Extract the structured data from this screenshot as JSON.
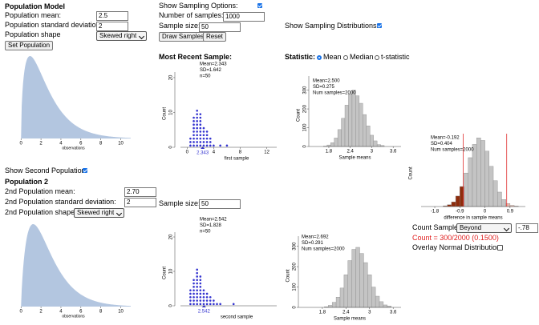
{
  "population1": {
    "title": "Population Model",
    "mean_label": "Population mean:",
    "mean_value": 2.5,
    "sd_label": "Population standard deviation:",
    "sd_value": 2,
    "shape_label": "Population shape",
    "shape_value": "Skewed right",
    "set_button": "Set Population"
  },
  "sampling": {
    "show_options_label": "Show Sampling Options:",
    "number_label": "Number of samples:",
    "number_value": 1000,
    "size_label": "Sample size:",
    "size_value": 50,
    "draw_button": "Draw Samples",
    "reset_button": "Reset",
    "show_dist_label": "Show Sampling Distributions:",
    "recent_title": "Most Recent Sample:",
    "statistic_label": "Statistic:",
    "statistic_options": [
      "Mean",
      "Median",
      "t-statistic"
    ]
  },
  "population2": {
    "show_label": "Show Second Population",
    "title": "Population 2",
    "mean_label": "2nd Population mean:",
    "mean_value": {
      "value": 2.7,
      "label": "2.70"
    },
    "sd_label": "2nd Population standard deviation:",
    "sd_value": 2,
    "shape_label": "2nd Population shape",
    "shape_value": "Skewed right",
    "size_label": "Sample size:",
    "size_value": 50
  },
  "count_samples": {
    "label": "Count Samples",
    "mode": "Beyond",
    "cutoff": {
      "value": -0.78,
      "label": "-.78"
    },
    "result": "Count = 300/2000 (0.1500)",
    "overlay_label": "Overlay Normal Distribution:"
  },
  "chart_data": [
    {
      "type": "density",
      "xlabel": "observations",
      "color": "#b3c6e0",
      "xlim": [
        -0.5,
        11
      ],
      "xticks": [
        0,
        2,
        4,
        6,
        8,
        10
      ]
    },
    {
      "type": "dotplot",
      "stats": [
        "Mean=2.343",
        "SD=1.642",
        "n=50"
      ],
      "mean": 2.343,
      "xlabel": "first sample",
      "ylabel": "Count",
      "color": "#3434d0",
      "xlim": [
        -1,
        13.5
      ],
      "xticks": [
        0,
        4,
        8,
        12
      ],
      "ylim": [
        0,
        21.6
      ],
      "yticks": [
        0,
        10,
        20
      ],
      "dots": {
        "x": [
          0.5,
          1,
          1.5,
          2,
          2.5,
          3,
          3.5,
          4,
          5,
          6
        ],
        "counts": [
          3,
          9,
          11,
          10,
          6,
          5,
          3,
          1,
          1,
          1
        ]
      }
    },
    {
      "type": "histogram",
      "stats": [
        "Mean=2.500",
        "SD=0.275",
        "Num samples=2000"
      ],
      "xlabel": "Sample means",
      "ylabel": "Count",
      "color": "#c4c4c4",
      "xlim": [
        1.24,
        3.82
      ],
      "xticks": [
        1.8,
        2.4,
        3,
        3.6
      ],
      "ylim": [
        0,
        375
      ],
      "yticks": [
        0,
        100,
        200,
        300
      ],
      "bins": [
        1.65,
        1.75,
        1.85,
        1.95,
        2.05,
        2.15,
        2.25,
        2.35,
        2.45,
        2.55,
        2.65,
        2.75,
        2.85,
        2.95,
        3.05,
        3.15,
        3.25,
        3.35
      ],
      "values": [
        2,
        8,
        20,
        45,
        90,
        150,
        220,
        280,
        300,
        270,
        230,
        170,
        110,
        60,
        30,
        10,
        5
      ]
    },
    {
      "type": "density",
      "xlabel": "observations",
      "color": "#b3c6e0",
      "xlim": [
        -0.5,
        11
      ],
      "xticks": [
        0,
        2,
        4,
        6,
        8,
        10
      ]
    },
    {
      "type": "dotplot",
      "stats": [
        "Mean=2.542",
        "SD=1.828",
        "n=50"
      ],
      "mean": 2.542,
      "xlabel": "second sample",
      "ylabel": "Count",
      "color": "#3434d0",
      "xlim": [
        -1,
        13.5
      ],
      "ylim": [
        0,
        21.4
      ],
      "yticks": [
        0,
        10,
        20
      ],
      "dots": {
        "x": [
          0.5,
          1,
          1.5,
          2,
          2.5,
          3,
          3.5,
          4,
          4.5,
          5,
          7
        ],
        "counts": [
          5,
          8,
          11,
          9,
          5,
          4,
          3,
          2,
          1,
          1,
          1
        ]
      }
    },
    {
      "type": "histogram",
      "stats": [
        "Mean=2.692",
        "SD=0.291",
        "Num samples=2000"
      ],
      "xlabel": "Sample means",
      "ylabel": "Count",
      "color": "#c4c4c4",
      "xlim": [
        1.19,
        3.8
      ],
      "xticks": [
        1.8,
        2.4,
        3,
        3.6
      ],
      "ylim": [
        0,
        350
      ],
      "yticks": [
        0,
        100,
        200,
        300
      ],
      "bins": [
        1.85,
        1.95,
        2.05,
        2.15,
        2.25,
        2.35,
        2.45,
        2.55,
        2.65,
        2.75,
        2.85,
        2.95,
        3.05,
        3.15,
        3.25,
        3.35,
        3.45,
        3.55
      ],
      "values": [
        3,
        10,
        25,
        50,
        95,
        160,
        230,
        285,
        295,
        265,
        220,
        160,
        100,
        55,
        28,
        12,
        7
      ]
    },
    {
      "type": "histogram",
      "stats": [
        "Mean=-0.192",
        "SD=0.404",
        "Num samples=2000"
      ],
      "xlabel": "difference in sample means",
      "ylabel": "Count",
      "color": "#c4c4c4",
      "tail_colors": [
        "#8e2c0c",
        "#e8b8ac"
      ],
      "line_color": "#e03030",
      "xlim": [
        -2.29,
        1.45
      ],
      "xticks": [
        -1.8,
        -0.9,
        0,
        0.9
      ],
      "ylim": [
        0,
        320
      ],
      "bins": [
        -1.5,
        -1.35,
        -1.2,
        -1.05,
        -0.9,
        -0.75,
        -0.6,
        -0.45,
        -0.3,
        -0.15,
        0,
        0.15,
        0.3,
        0.45,
        0.6,
        0.75,
        0.9,
        1.05,
        1.2
      ],
      "values": [
        3,
        8,
        20,
        45,
        86,
        144,
        210,
        267,
        295,
        284,
        238,
        173,
        111,
        62,
        30,
        13,
        5,
        2
      ]
    }
  ]
}
